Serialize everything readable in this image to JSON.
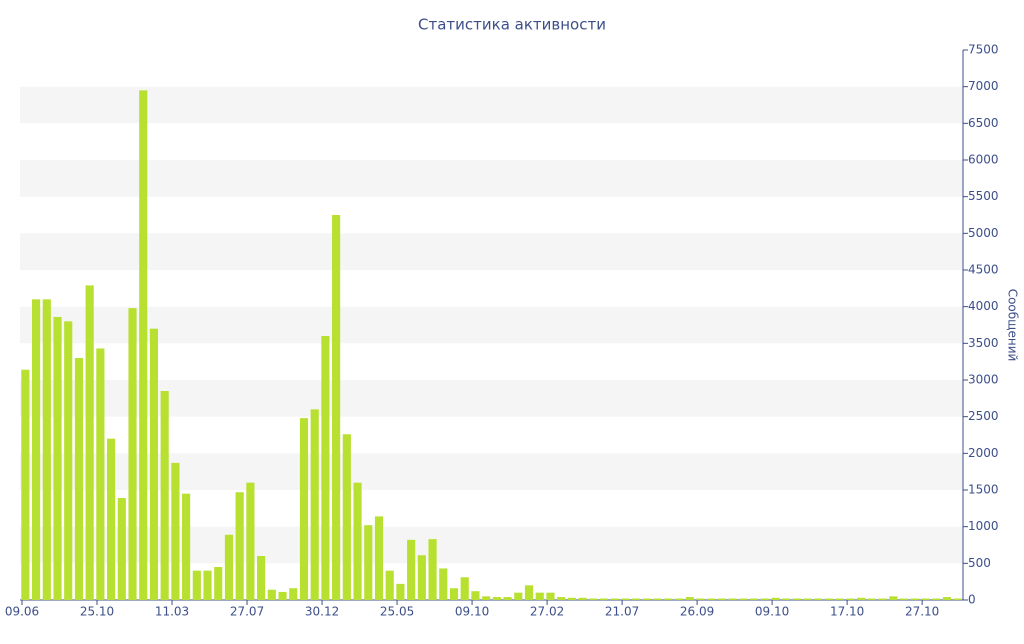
{
  "chart_data": {
    "type": "bar",
    "title": "Статистика активности",
    "y_label": "Сообщений",
    "categories": [
      "09.06",
      null,
      null,
      null,
      null,
      null,
      null,
      "25.10",
      null,
      null,
      null,
      null,
      null,
      null,
      "11.03",
      null,
      null,
      null,
      null,
      null,
      null,
      "27.07",
      null,
      null,
      null,
      null,
      null,
      null,
      "30.12",
      null,
      null,
      null,
      null,
      null,
      null,
      "25.05",
      null,
      null,
      null,
      null,
      null,
      null,
      "09.10",
      null,
      null,
      null,
      null,
      null,
      null,
      "27.02",
      null,
      null,
      null,
      null,
      null,
      null,
      "21.07",
      null,
      null,
      null,
      null,
      null,
      null,
      "26.09",
      null,
      null,
      null,
      null,
      null,
      null,
      "09.10",
      null,
      null,
      null,
      null,
      null,
      null,
      "17.10",
      null,
      null,
      null,
      null,
      null,
      null,
      "27.10",
      null,
      null,
      null
    ],
    "values": [
      3140,
      4100,
      4100,
      3860,
      3800,
      3300,
      4290,
      3430,
      2200,
      1390,
      3980,
      6950,
      3700,
      2850,
      1870,
      1450,
      400,
      400,
      450,
      890,
      1470,
      1600,
      600,
      140,
      110,
      160,
      2480,
      2600,
      3600,
      5250,
      2260,
      1600,
      1020,
      1140,
      400,
      220,
      820,
      610,
      830,
      430,
      160,
      310,
      120,
      50,
      40,
      40,
      100,
      200,
      100,
      100,
      40,
      30,
      30,
      20,
      20,
      20,
      20,
      20,
      20,
      20,
      20,
      20,
      40,
      20,
      20,
      20,
      20,
      20,
      20,
      20,
      30,
      20,
      20,
      20,
      20,
      20,
      20,
      20,
      30,
      20,
      20,
      50,
      20,
      20,
      20,
      20,
      40,
      20
    ],
    "color": "#b8e030",
    "ylim": [
      0,
      7500
    ],
    "yticks": [
      0,
      500,
      1000,
      1500,
      2000,
      2500,
      3000,
      3500,
      4000,
      4500,
      5000,
      5500,
      6000,
      6500,
      7000,
      7500
    ],
    "grid_bands": true
  }
}
